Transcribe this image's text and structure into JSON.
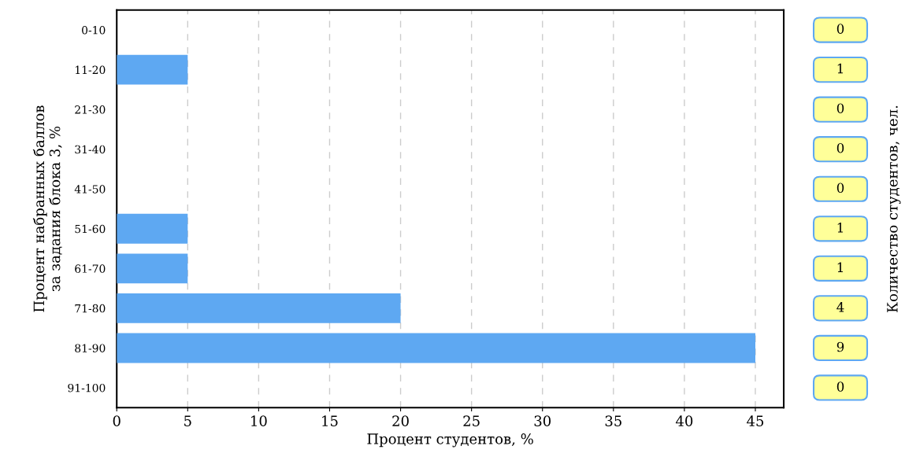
{
  "chart_data": {
    "type": "bar",
    "orientation": "horizontal",
    "categories": [
      "0-10",
      "11-20",
      "21-30",
      "31-40",
      "41-50",
      "51-60",
      "61-70",
      "71-80",
      "81-90",
      "91-100"
    ],
    "values": [
      0,
      5,
      0,
      0,
      0,
      5,
      5,
      20,
      45,
      0
    ],
    "color": "#5ea8f2",
    "annotations": [
      "0",
      "1",
      "0",
      "0",
      "0",
      "1",
      "1",
      "4",
      "9",
      "0",
      "Количество студентов, чел."
    ],
    "xlabel": "Процент студентов, %",
    "ylabel": "Процент набранных баллов\nза задания блока 3, %",
    "xlim": [
      0,
      47
    ],
    "xticks": [
      0,
      5,
      10,
      15,
      20,
      25,
      30,
      35,
      40,
      45
    ],
    "grid": "x"
  }
}
